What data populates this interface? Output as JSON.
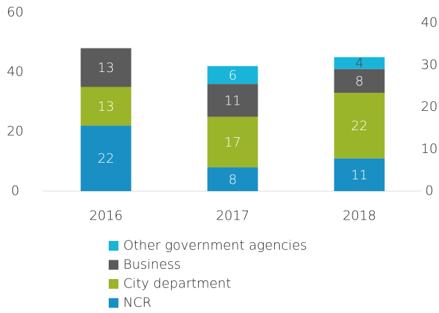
{
  "chart_data": {
    "type": "bar",
    "stacked": true,
    "categories": [
      "2016",
      "2017",
      "2018"
    ],
    "series": [
      {
        "name": "NCR",
        "color": "#1a8fc4",
        "values": [
          22,
          8,
          11
        ]
      },
      {
        "name": "City department",
        "color": "#9bb52a",
        "values": [
          13,
          17,
          22
        ]
      },
      {
        "name": "Business",
        "color": "#5b5b5b",
        "values": [
          13,
          11,
          8
        ]
      },
      {
        "name": "Other government agencies",
        "color": "#1ab4d8",
        "values": [
          null,
          6,
          4
        ]
      }
    ],
    "ylim": [
      0,
      60
    ],
    "yticks": [
      0,
      20,
      40,
      60
    ],
    "y2lim": [
      0,
      40
    ],
    "y2ticks": [
      0,
      10,
      20,
      30,
      40
    ],
    "grid": false,
    "legend": "bottom"
  }
}
